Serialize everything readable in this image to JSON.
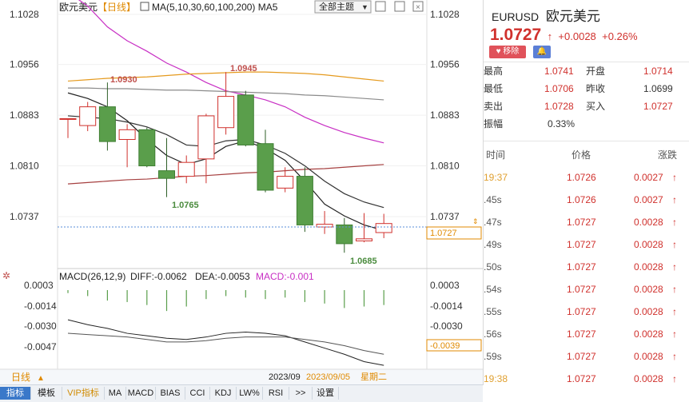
{
  "chart": {
    "name": "欧元美元",
    "period_tag": "【日线】",
    "ma_label": "MA(5,10,30,60,100,200) MA5",
    "theme_select": "全部主题",
    "price_ticks": [
      "1.1028",
      "1.0956",
      "1.0883",
      "1.0810",
      "1.0737"
    ],
    "current_price_label": "1.0727",
    "high_annotation": "1.0945",
    "high2_annotation": "1.0930",
    "low_annotation": "1.0765",
    "low2_annotation": "1.0685",
    "macd_label": "MACD(26,12,9)",
    "diff_label": "DIFF:-0.0062",
    "dea_label": "DEA:-0.0053",
    "macd_value_label": "MACD:-0.001",
    "macd_ticks": [
      "0.0003",
      "-0.0014",
      "-0.0030",
      "-0.0047"
    ],
    "macd_right_ticks": [
      "0.0003",
      "-0.0014",
      "-0.0030"
    ],
    "macd_current": "-0.0039",
    "date_month": "2023/09",
    "date_full": "2023/09/05",
    "weekday": "星期二",
    "period_button": "日线",
    "colors": {
      "up": "#d0312d",
      "down": "#5a9e4b",
      "ma5": "#222222",
      "ma10": "#c82fc4",
      "ma30": "#8b8b8b",
      "ma60": "#e59a1e",
      "ma200": "#a64040"
    }
  },
  "candles": [
    {
      "o": 1.0878,
      "c": 1.0878,
      "h": 1.0878,
      "l": 1.085
    },
    {
      "o": 1.0868,
      "c": 1.0895,
      "h": 1.0902,
      "l": 1.086
    },
    {
      "o": 1.0895,
      "c": 1.0845,
      "h": 1.093,
      "l": 1.0832
    },
    {
      "o": 1.0848,
      "c": 1.0862,
      "h": 1.087,
      "l": 1.0808
    },
    {
      "o": 1.0862,
      "c": 1.081,
      "h": 1.0865,
      "l": 1.0808
    },
    {
      "o": 1.0803,
      "c": 1.0792,
      "h": 1.085,
      "l": 1.0765
    },
    {
      "o": 1.0795,
      "c": 1.0815,
      "h": 1.0825,
      "l": 1.0785
    },
    {
      "o": 1.082,
      "c": 1.0882,
      "h": 1.0885,
      "l": 1.0785
    },
    {
      "o": 1.0865,
      "c": 1.091,
      "h": 1.0945,
      "l": 1.0855
    },
    {
      "o": 1.0912,
      "c": 1.084,
      "h": 1.0918,
      "l": 1.0838
    },
    {
      "o": 1.0842,
      "c": 1.0775,
      "h": 1.0862,
      "l": 1.0772
    },
    {
      "o": 1.0778,
      "c": 1.0795,
      "h": 1.0808,
      "l": 1.0772
    },
    {
      "o": 1.0795,
      "c": 1.0725,
      "h": 1.0808,
      "l": 1.0715
    },
    {
      "o": 1.0722,
      "c": 1.0726,
      "h": 1.0745,
      "l": 1.0712
    },
    {
      "o": 1.0725,
      "c": 1.0698,
      "h": 1.0735,
      "l": 1.0685
    },
    {
      "o": 1.0702,
      "c": 1.0705,
      "h": 1.0742,
      "l": 1.07
    },
    {
      "o": 1.0714,
      "c": 1.0727,
      "h": 1.0741,
      "l": 1.0706
    }
  ],
  "ma": {
    "ma5": [
      1.0915,
      1.0907,
      1.0895,
      1.0875,
      1.0848,
      1.0825,
      1.0812,
      1.082,
      1.0838,
      1.0846,
      1.0835,
      1.0818,
      1.0788,
      1.0755,
      1.0738,
      1.0725,
      1.0717
    ],
    "ma10": [
      1.106,
      1.104,
      1.101,
      1.099,
      1.0975,
      1.0958,
      1.0945,
      1.093,
      1.0918,
      1.0912,
      1.0905,
      1.0895,
      1.088,
      1.0868,
      1.0858,
      1.085,
      1.0843
    ],
    "ma30": [
      1.0922,
      1.0922,
      1.0921,
      1.0921,
      1.092,
      1.0919,
      1.0919,
      1.0918,
      1.0917,
      1.0916,
      1.0915,
      1.0914,
      1.0912,
      1.0911,
      1.0909,
      1.0907,
      1.0905
    ],
    "ma60": [
      1.0932,
      1.0934,
      1.0936,
      1.0937,
      1.0938,
      1.094,
      1.0942,
      1.0943,
      1.0944,
      1.0945,
      1.0945,
      1.0944,
      1.0943,
      1.0941,
      1.0938,
      1.0935,
      1.0932
    ],
    "ma200": [
      1.0784,
      1.0786,
      1.0788,
      1.079,
      1.0791,
      1.0793,
      1.0795,
      1.0796,
      1.0798,
      1.08,
      1.0801,
      1.0803,
      1.0805,
      1.0806,
      1.0808,
      1.081,
      1.0812
    ],
    "ma100": [
      1.0882,
      1.088,
      1.0878,
      1.0873,
      1.0866,
      1.0855,
      1.084,
      1.0838,
      1.0846,
      1.0848,
      1.084,
      1.0828,
      1.081,
      1.0788,
      1.077,
      1.0758,
      1.075
    ]
  },
  "macd": {
    "hist": [
      -0.0002,
      -0.0004,
      -0.0007,
      -0.0008,
      -0.001,
      -0.0014,
      -0.0011,
      -0.0006,
      -0.0004,
      -0.0005,
      -0.0006,
      -0.0005,
      -0.0008,
      -0.0009,
      -0.0012,
      -0.0011,
      -0.001
    ],
    "diff": [
      -0.0025,
      -0.0029,
      -0.0032,
      -0.0036,
      -0.0038,
      -0.004,
      -0.0041,
      -0.0039,
      -0.0036,
      -0.0035,
      -0.0036,
      -0.0038,
      -0.0043,
      -0.0048,
      -0.0053,
      -0.0059,
      -0.0062
    ],
    "dea": [
      -0.0036,
      -0.0037,
      -0.0038,
      -0.0039,
      -0.0041,
      -0.0043,
      -0.0043,
      -0.0042,
      -0.004,
      -0.0039,
      -0.0039,
      -0.0039,
      -0.0041,
      -0.0043,
      -0.0046,
      -0.005,
      -0.0053
    ]
  },
  "toolbar": [
    {
      "label": "指标"
    },
    {
      "label": "模板"
    },
    {
      "label": "VIP指标"
    },
    {
      "label": "MA"
    },
    {
      "label": "MACD"
    },
    {
      "label": "BIAS"
    },
    {
      "label": "CCI"
    },
    {
      "label": "KDJ"
    },
    {
      "label": "LW%"
    },
    {
      "label": "RSI"
    },
    {
      "label": ">>"
    },
    {
      "label": "设置"
    }
  ],
  "quote": {
    "code": "EURUSD",
    "name": "欧元美元",
    "price": "1.0727",
    "change": "+0.0028",
    "change_pct": "+0.26%",
    "remove_btn": "移除",
    "high_label": "最高",
    "high": "1.0741",
    "open_label": "开盘",
    "open": "1.0714",
    "low_label": "最低",
    "low": "1.0706",
    "prev_label": "昨收",
    "prev": "1.0699",
    "sell_label": "卖出",
    "sell": "1.0728",
    "buy_label": "买入",
    "buy": "1.0727",
    "amp_label": "振幅",
    "amp": "0.33%"
  },
  "trades_head": {
    "time": "时间",
    "price": "价格",
    "change": "涨跌"
  },
  "trades": [
    {
      "time": "19:37",
      "price": "1.0726",
      "change": "0.0027"
    },
    {
      "time": ".45s",
      "price": "1.0726",
      "change": "0.0027"
    },
    {
      "time": ".47s",
      "price": "1.0727",
      "change": "0.0028"
    },
    {
      "time": ".49s",
      "price": "1.0727",
      "change": "0.0028"
    },
    {
      "time": ".50s",
      "price": "1.0727",
      "change": "0.0028"
    },
    {
      "time": ".54s",
      "price": "1.0727",
      "change": "0.0028"
    },
    {
      "time": ".55s",
      "price": "1.0727",
      "change": "0.0028"
    },
    {
      "time": ".56s",
      "price": "1.0727",
      "change": "0.0028"
    },
    {
      "time": ".59s",
      "price": "1.0727",
      "change": "0.0028"
    },
    {
      "time": "19:38",
      "price": "1.0727",
      "change": "0.0028"
    }
  ]
}
